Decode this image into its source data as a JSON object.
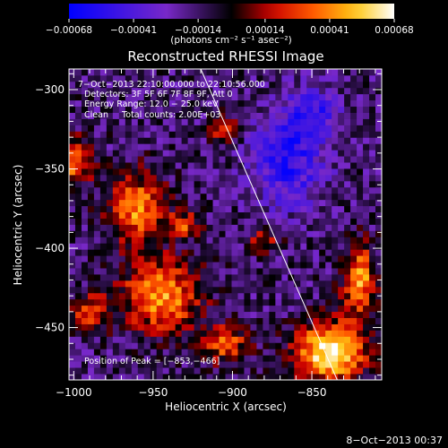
{
  "chart_data": {
    "type": "heatmap",
    "title": "Reconstructed RHESSI Image",
    "xlabel": "Heliocentric X (arcsec)",
    "ylabel": "Heliocentric Y (arcsec)",
    "xlim": [
      -1003,
      -806
    ],
    "ylim": [
      -483,
      -287
    ],
    "xticks": [
      -1000,
      -950,
      -900,
      -850
    ],
    "yticks": [
      -300,
      -350,
      -400,
      -450
    ],
    "xtick_labels": [
      "−1000",
      "−950",
      "−900",
      "−850"
    ],
    "ytick_labels": [
      "−300",
      "−350",
      "−400",
      "−450"
    ],
    "colorbar": {
      "ticks": [
        -0.00068,
        -0.00041,
        -0.00014,
        0.00014,
        0.00041,
        0.00068
      ],
      "tick_labels": [
        "−0.00068",
        "−0.00041",
        "−0.00014",
        "0.00014",
        "0.00041",
        "0.00068"
      ],
      "unit_label": "(photons cm⁻² s⁻¹ asec⁻²)",
      "vmin": -0.00068,
      "vmax": 0.00068
    },
    "annotations": [
      "7−Oct−2013 22:10:00.000 to 22:10:56.000",
      "Detectors: 3F 5F 6F 7F 8F 9F, Att 0",
      "Energy Range: 12.0 − 25.0 keV",
      "Clean     Total counts: 2.00E+03"
    ],
    "peak_label": "Position of Peak = [−853,−466]",
    "peak": [
      -853,
      -466
    ],
    "limb_line": [
      [
        -920,
        -287
      ],
      [
        -834,
        -483
      ]
    ],
    "regions": [
      {
        "x": -838,
        "y": -465,
        "sx": 22,
        "sy": 18,
        "v": 0.00068
      },
      {
        "x": -820,
        "y": -420,
        "sx": 10,
        "sy": 22,
        "v": 0.00045
      },
      {
        "x": -945,
        "y": -430,
        "sx": 25,
        "sy": 22,
        "v": 0.00045
      },
      {
        "x": -960,
        "y": -375,
        "sx": 18,
        "sy": 22,
        "v": 0.0004
      },
      {
        "x": -1000,
        "y": -345,
        "sx": 12,
        "sy": 15,
        "v": 0.00035
      },
      {
        "x": -990,
        "y": -440,
        "sx": 12,
        "sy": 12,
        "v": 0.00025
      },
      {
        "x": -905,
        "y": -325,
        "sx": 8,
        "sy": 8,
        "v": 0.00028
      },
      {
        "x": -930,
        "y": -385,
        "sx": 10,
        "sy": 8,
        "v": 0.00025
      },
      {
        "x": -880,
        "y": -395,
        "sx": 10,
        "sy": 8,
        "v": 0.0002
      },
      {
        "x": -905,
        "y": -460,
        "sx": 15,
        "sy": 12,
        "v": 0.0003
      },
      {
        "x": -865,
        "y": -345,
        "sx": 22,
        "sy": 28,
        "v": -0.0004
      },
      {
        "x": -850,
        "y": -315,
        "sx": 16,
        "sy": 16,
        "v": -0.00035
      }
    ]
  }
}
